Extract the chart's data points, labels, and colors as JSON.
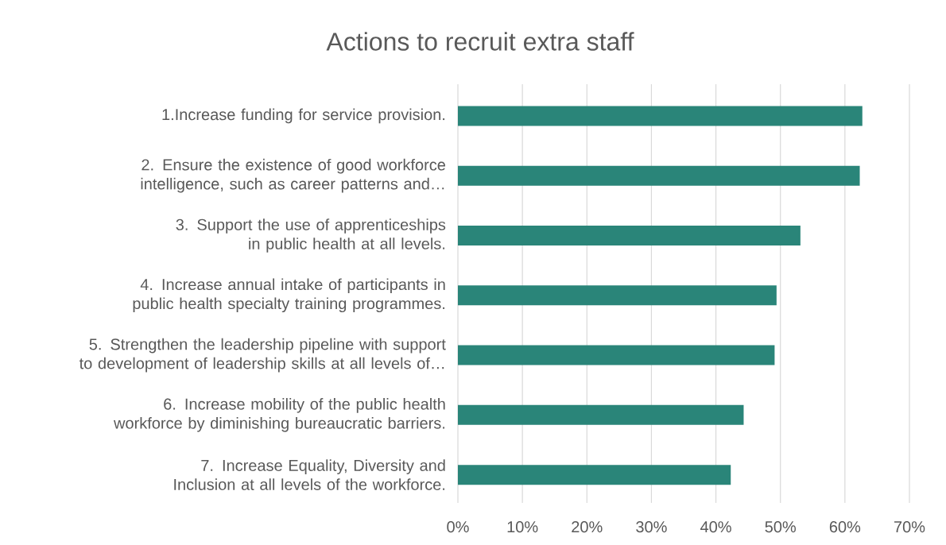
{
  "chart_data": {
    "type": "bar",
    "orientation": "horizontal",
    "title": "Actions to recruit extra staff",
    "categories": [
      "1.Increase funding for service provision.",
      "2. Ensure the existence of good workforce intelligence, such as career patterns and…",
      "3. Support the use of apprenticeships in public health at all levels.",
      "4. Increase annual intake of participants in public health specialty training programmes.",
      "5. Strengthen the leadership pipeline with support to development of leadership skills at all levels of…",
      "6. Increase mobility of the public health workforce by diminishing bureaucratic barriers.",
      "7. Increase Equality, Diversity and Inclusion at all levels of the workforce."
    ],
    "values": [
      62.7,
      62.3,
      53.1,
      49.4,
      49.1,
      44.3,
      42.3
    ],
    "color": "#2a8579",
    "xlim": [
      0,
      70
    ],
    "xticks": [
      {
        "value": 0,
        "label": "0%"
      },
      {
        "value": 10,
        "label": "10%"
      },
      {
        "value": 20,
        "label": "20%"
      },
      {
        "value": 30,
        "label": "30%"
      },
      {
        "value": 40,
        "label": "40%"
      },
      {
        "value": 50,
        "label": "50%"
      },
      {
        "value": 60,
        "label": "60%"
      },
      {
        "value": 70,
        "label": "70%"
      }
    ],
    "grid": "x"
  }
}
